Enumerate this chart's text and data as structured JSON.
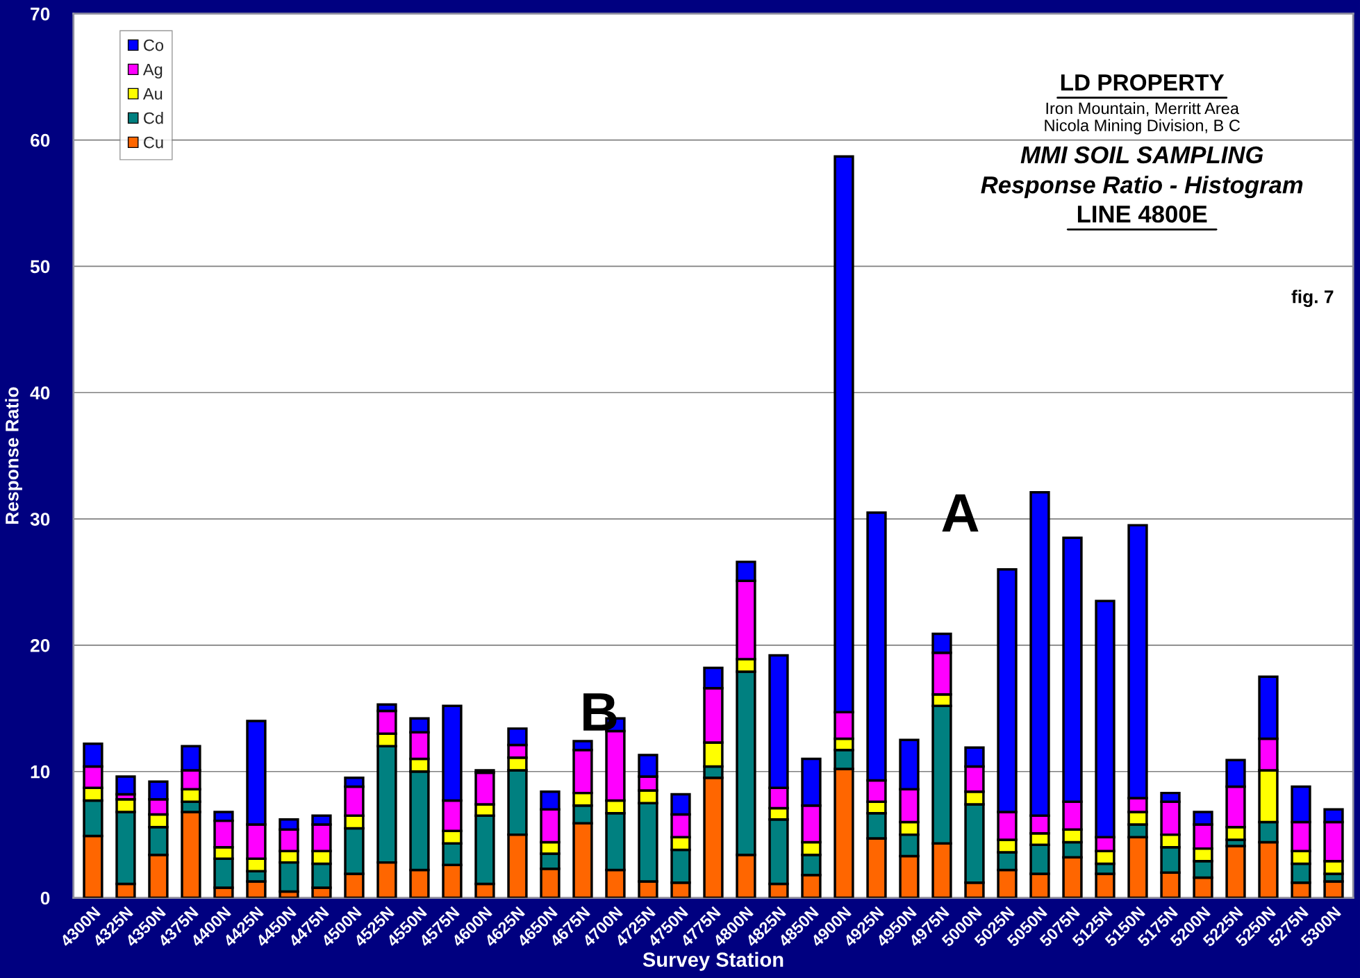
{
  "chart_data": {
    "type": "bar",
    "stacked": true,
    "title": "LD PROPERTY",
    "subtitle": "Iron Mountain, Merritt Area\nNicola Mining Division, B C",
    "xlabel": "Survey Station",
    "ylabel": "Response Ratio",
    "categories": [
      "4300N",
      "4325N",
      "4350N",
      "4375N",
      "4400N",
      "4425N",
      "4450N",
      "4475N",
      "4500N",
      "4525N",
      "4550N",
      "4575N",
      "4600N",
      "4625N",
      "4650N",
      "4675N",
      "4700N",
      "4725N",
      "4750N",
      "4775N",
      "4800N",
      "4825N",
      "4850N",
      "4900N",
      "4925N",
      "4950N",
      "4975N",
      "5000N",
      "5025N",
      "5050N",
      "5075N",
      "5125N",
      "5150N",
      "5175N",
      "5200N",
      "5225N",
      "5250N",
      "5275N",
      "5300N"
    ],
    "series": [
      {
        "name": "Cu",
        "color": "#ff6600",
        "values": [
          4.9,
          1.1,
          3.4,
          6.8,
          0.8,
          1.3,
          0.5,
          0.8,
          1.9,
          2.8,
          2.2,
          2.6,
          1.1,
          5.0,
          2.3,
          5.9,
          2.2,
          1.3,
          1.2,
          9.5,
          3.4,
          1.1,
          1.8,
          10.2,
          4.7,
          3.3,
          4.3,
          1.2,
          2.2,
          1.9,
          3.2,
          1.9,
          4.8,
          2.0,
          1.6,
          4.1,
          4.4,
          1.2,
          1.3
        ]
      },
      {
        "name": "Cd",
        "color": "#008080",
        "values": [
          2.8,
          5.7,
          2.2,
          0.8,
          2.3,
          0.8,
          2.3,
          1.9,
          3.6,
          9.2,
          7.8,
          1.7,
          5.4,
          5.1,
          1.2,
          1.4,
          4.5,
          6.2,
          2.6,
          0.9,
          14.5,
          5.1,
          1.6,
          1.5,
          2.0,
          1.7,
          10.9,
          6.2,
          1.4,
          2.3,
          1.2,
          0.8,
          1.0,
          2.0,
          1.3,
          0.5,
          1.6,
          1.5,
          0.6
        ]
      },
      {
        "name": "Au",
        "color": "#ffff00",
        "values": [
          1.0,
          1.0,
          1.0,
          1.0,
          0.9,
          1.0,
          0.9,
          1.0,
          1.0,
          1.0,
          1.0,
          1.0,
          0.9,
          1.0,
          0.9,
          1.0,
          1.0,
          1.0,
          1.0,
          1.9,
          1.0,
          0.9,
          1.0,
          0.9,
          0.9,
          1.0,
          0.9,
          1.0,
          1.0,
          0.9,
          1.0,
          1.0,
          1.0,
          1.0,
          1.0,
          1.0,
          4.1,
          1.0,
          1.0
        ]
      },
      {
        "name": "Ag",
        "color": "#ff00ff",
        "values": [
          1.7,
          0.4,
          1.2,
          1.5,
          2.1,
          2.7,
          1.7,
          2.1,
          2.3,
          1.8,
          2.1,
          2.4,
          2.5,
          1.0,
          2.6,
          3.4,
          5.5,
          1.1,
          1.8,
          4.3,
          6.2,
          1.6,
          2.9,
          2.1,
          1.7,
          2.6,
          3.3,
          2.0,
          2.2,
          1.4,
          2.2,
          1.1,
          1.1,
          2.6,
          1.9,
          3.2,
          2.5,
          2.3,
          3.1
        ]
      },
      {
        "name": "Co",
        "color": "#0000ff",
        "values": [
          1.8,
          1.4,
          1.4,
          1.9,
          0.7,
          8.2,
          0.8,
          0.7,
          0.7,
          0.5,
          1.1,
          7.5,
          0.2,
          1.3,
          1.4,
          0.7,
          1.0,
          1.7,
          1.6,
          1.6,
          1.5,
          10.5,
          3.7,
          44.0,
          21.2,
          3.9,
          1.5,
          1.5,
          19.2,
          25.6,
          20.9,
          18.7,
          21.6,
          0.7,
          1.0,
          2.1,
          4.9,
          2.8,
          1.0
        ]
      }
    ],
    "ylim": [
      0,
      70
    ],
    "yticks": [
      0,
      10,
      20,
      30,
      40,
      50,
      60,
      70
    ],
    "grid": "y",
    "legend": "top left",
    "annotations": [
      "MMI SOIL SAMPLING",
      "Response Ratio - Histogram",
      "LINE 4800E",
      "fig. 7",
      "A",
      "B"
    ]
  }
}
